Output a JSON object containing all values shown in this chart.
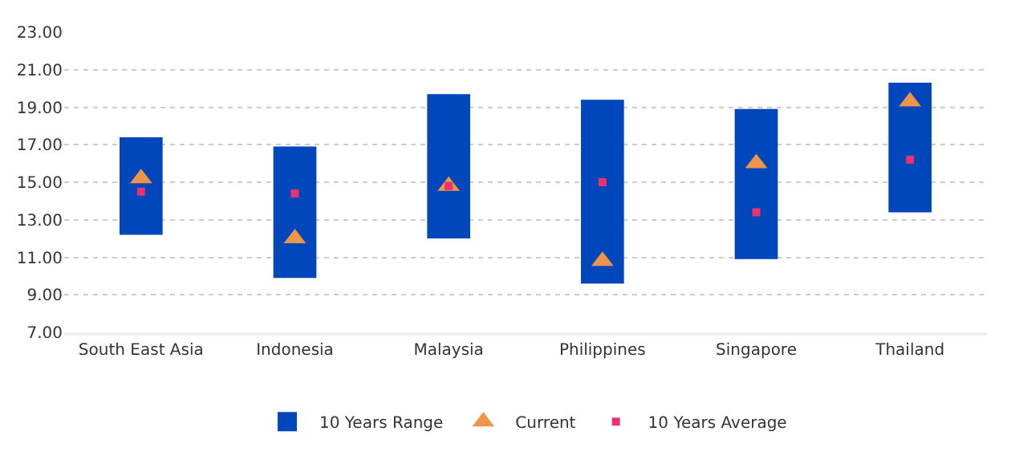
{
  "chart_data": {
    "type": "bar",
    "categories": [
      "South East Asia",
      "Indonesia",
      "Malaysia",
      "Philippines",
      "Singapore",
      "Thailand"
    ],
    "series": [
      {
        "name": "10 Years Range",
        "color": "#0047bb",
        "base": [
          12.2,
          9.9,
          12.0,
          9.6,
          10.9,
          13.4
        ],
        "values": [
          5.2,
          7.0,
          7.7,
          9.8,
          8.0,
          6.9
        ]
      },
      {
        "name": "Current",
        "type": "scatter",
        "marker": "triangle",
        "color": "#f0944a",
        "values": [
          15.2,
          12.0,
          14.8,
          10.8,
          16.0,
          19.3
        ]
      },
      {
        "name": "10 Years Average",
        "type": "scatter",
        "marker": "square",
        "color": "#e8336e",
        "values": [
          14.5,
          14.4,
          14.8,
          15.0,
          13.4,
          16.2
        ]
      }
    ],
    "ylim": [
      7,
      23
    ],
    "yticks": [
      {
        "value": 7,
        "label": "7.00"
      },
      {
        "value": 9,
        "label": "9.00"
      },
      {
        "value": 11,
        "label": "11.00"
      },
      {
        "value": 13,
        "label": "13.00"
      },
      {
        "value": 15,
        "label": "15.00"
      },
      {
        "value": 17,
        "label": "17.00"
      },
      {
        "value": 19,
        "label": "19.00"
      },
      {
        "value": 21,
        "label": "21.00"
      },
      {
        "value": 23,
        "label": "23.00"
      }
    ],
    "grid": "y",
    "legend": "bottom"
  }
}
